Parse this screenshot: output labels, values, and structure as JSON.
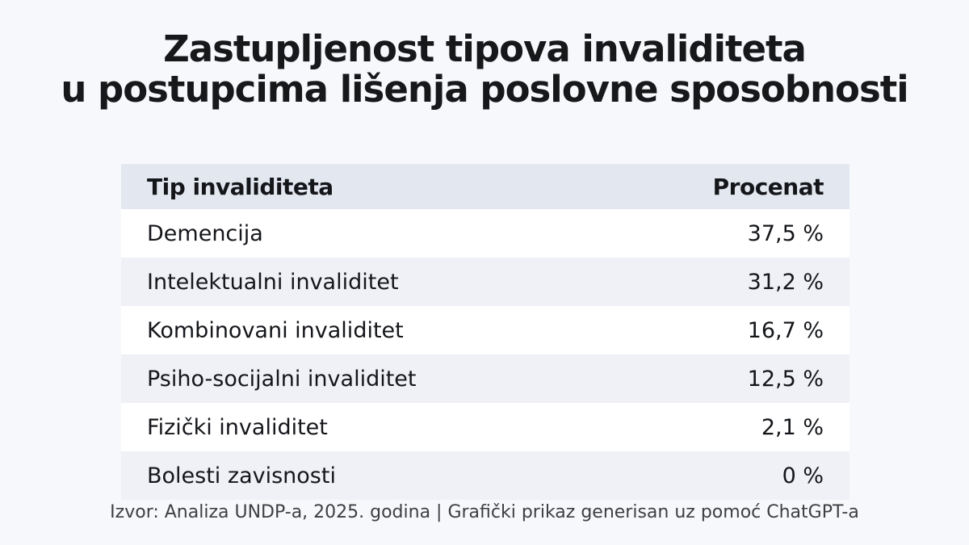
{
  "title": {
    "line1": "Zastupljenost tipova invaliditeta",
    "line2": "u postupcima lišenja poslovne sposobnosti"
  },
  "table": {
    "headers": [
      "Tip invaliditeta",
      "Procenat"
    ],
    "rows": [
      {
        "label": "Demencija",
        "value": "37,5 %"
      },
      {
        "label": "Intelektualni invaliditet",
        "value": "31,2 %"
      },
      {
        "label": "Kombinovani invaliditet",
        "value": "16,7 %"
      },
      {
        "label": "Psiho-socijalni invaliditet",
        "value": "12,5 %"
      },
      {
        "label": "Fizički invaliditet",
        "value": "2,1 %"
      },
      {
        "label": "Bolesti zavisnosti",
        "value": "0 %"
      }
    ]
  },
  "footer": "Izvor: Analiza UNDP-a, 2025. godina | Grafički prikaz generisan uz pomoć ChatGPT-a",
  "colors": {
    "page_bg": "#f7f8fb",
    "header_bg": "#e3e7f0",
    "row_bg": "#ffffff",
    "row_alt_bg": "#eff1f7",
    "title_text": "#17181a",
    "footer_text": "#3d3f42"
  },
  "chart_data": {
    "type": "table",
    "title": "Zastupljenost tipova invaliditeta u postupcima lišenja poslovne sposobnosti",
    "columns": [
      "Tip invaliditeta",
      "Procenat"
    ],
    "categories": [
      "Demencija",
      "Intelektualni invaliditet",
      "Kombinovani invaliditet",
      "Psiho-socijalni invaliditet",
      "Fizički invaliditet",
      "Bolesti zavisnosti"
    ],
    "values": [
      37.5,
      31.2,
      16.7,
      12.5,
      2.1,
      0
    ],
    "value_labels": [
      "37,5 %",
      "31,2 %",
      "16,7 %",
      "12,5 %",
      "2,1 %",
      "0 %"
    ],
    "unit": "%",
    "source": "Izvor: Analiza UNDP-a, 2025. godina | Grafički prikaz generisan uz pomoć ChatGPT-a"
  }
}
